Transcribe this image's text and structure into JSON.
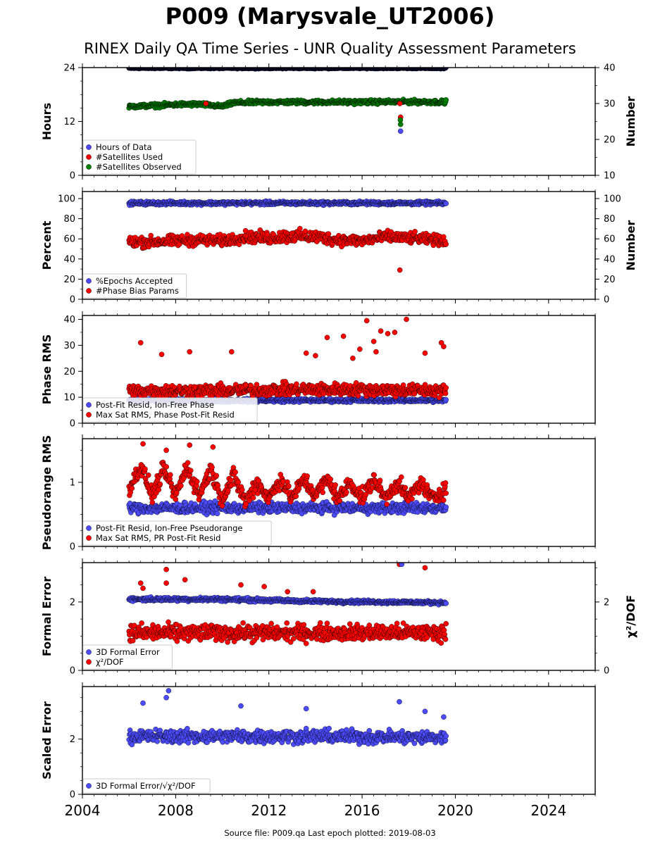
{
  "title": "P009 (Marysvale_UT2006)",
  "subtitle": "RINEX Daily QA Time Series - UNR Quality Assessment Parameters",
  "footer": "Source file: P009.qa Last epoch plotted: 2019-08-03",
  "colors": {
    "blue": "#4b4bff",
    "red": "#ff0000",
    "green": "#008000",
    "dark_blue": "#0a0a3c"
  },
  "chart_data": [
    {
      "type": "scatter",
      "id": "hours",
      "xlim": [
        2004,
        2026
      ],
      "ylabel": "Hours",
      "ylim": [
        0,
        24
      ],
      "yticks": [
        0,
        12,
        24
      ],
      "y2label": "Number",
      "y2lim": [
        10,
        40
      ],
      "y2ticks": [
        10,
        20,
        30,
        40
      ],
      "legend_position": "lower-left",
      "legend": [
        {
          "label": "Hours of Data",
          "color": "#4b4bff"
        },
        {
          "label": "#Satellites Used",
          "color": "#ff0000"
        },
        {
          "label": "#Satellites Observed",
          "color": "#008000"
        }
      ],
      "series": [
        {
          "name": "Hours of Data",
          "axis": "left",
          "color": "#0a0a3c",
          "kind": "band",
          "x": [
            2006.0,
            2019.6
          ],
          "center": [
            23.9,
            23.9
          ],
          "spread": [
            0.2,
            0.2
          ]
        },
        {
          "name": "#Satellites Observed",
          "axis": "right",
          "color": "#008000",
          "kind": "band",
          "x": [
            2006.0,
            2007.0,
            2008.0,
            2009.0,
            2010.0,
            2010.5,
            2012.0,
            2014.0,
            2016.0,
            2018.0,
            2019.6
          ],
          "center": [
            29.2,
            29.4,
            29.7,
            29.8,
            29.2,
            30.2,
            30.4,
            30.4,
            30.4,
            30.5,
            30.4
          ],
          "spread": [
            0.7,
            0.8,
            0.8,
            0.8,
            0.7,
            0.8,
            0.8,
            0.8,
            0.8,
            0.8,
            0.8
          ]
        },
        {
          "name": "#Satellites Used",
          "axis": "right",
          "color": "#ff0000",
          "kind": "points",
          "x": [
            2009.3,
            2017.65,
            2017.62
          ],
          "y": [
            30.0,
            26.2,
            30.0
          ]
        },
        {
          "name": "#Satellites Observed",
          "axis": "right",
          "color": "#008000",
          "kind": "points",
          "x": [
            2017.65,
            2017.64
          ],
          "y": [
            24.2,
            25.4
          ]
        },
        {
          "name": "Hours of Data",
          "axis": "right",
          "color": "#4b4bff",
          "kind": "points",
          "x": [
            2017.65
          ],
          "y": [
            22.3
          ]
        }
      ]
    },
    {
      "type": "scatter",
      "id": "percent",
      "xlim": [
        2004,
        2026
      ],
      "ylabel": "Percent",
      "ylim": [
        0,
        107
      ],
      "yticks": [
        0,
        20,
        40,
        60,
        80,
        100
      ],
      "y2label": "Number",
      "y2lim": [
        0,
        107
      ],
      "y2ticks": [
        0,
        20,
        40,
        60,
        80,
        100
      ],
      "legend_position": "lower-left",
      "legend": [
        {
          "label": "%Epochs Accepted",
          "color": "#4b4bff"
        },
        {
          "label": "#Phase Bias Params",
          "color": "#ff0000"
        }
      ],
      "series": [
        {
          "name": "%Epochs Accepted",
          "axis": "left",
          "color": "#4b4bff",
          "kind": "band",
          "x": [
            2006.0,
            2019.6
          ],
          "center": [
            95.5,
            95.5
          ],
          "spread": [
            2.5,
            2.5
          ]
        },
        {
          "name": "#Phase Bias Params",
          "axis": "right",
          "color": "#ff0000",
          "kind": "band",
          "x": [
            2006.0,
            2007.0,
            2008.0,
            2009.0,
            2010.0,
            2011.0,
            2012.0,
            2013.0,
            2014.0,
            2015.0,
            2016.0,
            2017.0,
            2018.0,
            2019.6
          ],
          "center": [
            57,
            57,
            58,
            59,
            58,
            62,
            61,
            63,
            62,
            59,
            58,
            62,
            61,
            58
          ],
          "spread": [
            8,
            8,
            8,
            8,
            8,
            8,
            9,
            9,
            9,
            8,
            8,
            8,
            8,
            7
          ]
        },
        {
          "name": "#Phase Bias Params",
          "axis": "right",
          "color": "#ff0000",
          "kind": "points",
          "x": [
            2017.62
          ],
          "y": [
            29
          ]
        }
      ]
    },
    {
      "type": "scatter",
      "id": "phase",
      "xlim": [
        2004,
        2026
      ],
      "ylabel": "Phase RMS",
      "ylim": [
        0,
        41.5
      ],
      "yticks": [
        0,
        10,
        20,
        30,
        40
      ],
      "legend_position": "lower-left",
      "legend": [
        {
          "label": "Post-Fit Resid, Ion-Free Phase",
          "color": "#4b4bff"
        },
        {
          "label": "Max Sat RMS, Phase Post-Fit Resid",
          "color": "#ff0000"
        }
      ],
      "series": [
        {
          "name": "Post-Fit Resid, Ion-Free Phase",
          "axis": "left",
          "color": "#4b4bff",
          "kind": "band",
          "x": [
            2006.0,
            2019.6
          ],
          "center": [
            8.8,
            8.8
          ],
          "spread": [
            1.0,
            1.0
          ]
        },
        {
          "name": "Max Sat RMS, Phase Post-Fit Resid",
          "axis": "left",
          "color": "#ff0000",
          "kind": "band",
          "x": [
            2006.0,
            2010.0,
            2013.0,
            2016.0,
            2019.6
          ],
          "center": [
            12.5,
            12.5,
            13.0,
            13.0,
            12.5
          ],
          "spread": [
            3.5,
            3.5,
            3.5,
            3.5,
            3.5
          ]
        },
        {
          "name": "Max Sat RMS, Phase Post-Fit Resid",
          "axis": "left",
          "color": "#ff0000",
          "kind": "points",
          "x": [
            2006.5,
            2007.4,
            2008.6,
            2010.4,
            2013.6,
            2014.5,
            2015.2,
            2015.9,
            2016.2,
            2016.5,
            2016.8,
            2017.1,
            2017.4,
            2017.9,
            2018.7,
            2019.4,
            2019.5,
            2015.6,
            2016.6,
            2014.0
          ],
          "y": [
            31,
            26.5,
            27.5,
            27.5,
            27,
            33,
            33.5,
            28.5,
            39.5,
            31.5,
            35.5,
            34.5,
            35,
            40,
            27,
            31,
            29.5,
            25,
            27.5,
            26
          ]
        }
      ]
    },
    {
      "type": "scatter",
      "id": "pseudorange",
      "xlim": [
        2004,
        2026
      ],
      "ylabel": "Pseudorange RMS",
      "ylim": [
        0,
        1.68
      ],
      "yticks": [
        0,
        1
      ],
      "legend_position": "lower-left",
      "legend": [
        {
          "label": "Post-Fit Resid, Ion-Free Pseudorange",
          "color": "#4b4bff"
        },
        {
          "label": "Max Sat RMS, PR Post-Fit Resid",
          "color": "#ff0000"
        }
      ],
      "series": [
        {
          "name": "Post-Fit Resid, Ion-Free Pseudorange",
          "axis": "left",
          "color": "#4b4bff",
          "kind": "band",
          "x": [
            2006.0,
            2019.6
          ],
          "center": [
            0.6,
            0.6
          ],
          "spread": [
            0.12,
            0.12
          ]
        },
        {
          "name": "Max Sat RMS, PR Post-Fit Resid",
          "axis": "left",
          "color": "#ff0000",
          "kind": "band",
          "x": [
            2006.0,
            2006.5,
            2007.0,
            2007.5,
            2008.0,
            2008.5,
            2009.0,
            2009.5,
            2010.0,
            2010.5,
            2011.0,
            2011.5,
            2012.0,
            2012.5,
            2013.0,
            2013.5,
            2014.0,
            2014.5,
            2015.0,
            2015.5,
            2016.0,
            2016.5,
            2017.0,
            2017.5,
            2018.0,
            2018.5,
            2019.0,
            2019.6
          ],
          "center": [
            0.9,
            1.25,
            0.8,
            1.2,
            0.8,
            1.25,
            0.8,
            1.2,
            0.75,
            1.1,
            0.7,
            1.0,
            0.75,
            1.05,
            0.75,
            1.05,
            0.8,
            1.05,
            0.75,
            1.0,
            0.75,
            1.05,
            0.75,
            1.0,
            0.75,
            1.0,
            0.75,
            0.9
          ],
          "spread": [
            0.18,
            0.2,
            0.18,
            0.2,
            0.18,
            0.2,
            0.18,
            0.2,
            0.18,
            0.2,
            0.18,
            0.2,
            0.18,
            0.18,
            0.18,
            0.18,
            0.18,
            0.18,
            0.18,
            0.18,
            0.18,
            0.18,
            0.18,
            0.18,
            0.18,
            0.18,
            0.18,
            0.18
          ]
        },
        {
          "name": "Max Sat RMS, PR Post-Fit Resid",
          "axis": "left",
          "color": "#ff0000",
          "kind": "points",
          "x": [
            2006.6,
            2007.6,
            2008.6,
            2009.6
          ],
          "y": [
            1.6,
            1.5,
            1.58,
            1.55
          ]
        }
      ]
    },
    {
      "type": "scatter",
      "id": "formal",
      "xlim": [
        2004,
        2026
      ],
      "ylabel": "Formal Error",
      "ylim": [
        0,
        3.15
      ],
      "yticks": [
        0,
        2
      ],
      "y2label": "χ²/DOF",
      "y2lim": [
        0,
        3.15
      ],
      "y2ticks": [
        0,
        2
      ],
      "legend_position": "lower-left",
      "legend": [
        {
          "label": "3D Formal Error",
          "color": "#4b4bff"
        },
        {
          "label": "χ²/DOF",
          "color": "#ff0000"
        }
      ],
      "series": [
        {
          "name": "3D Formal Error",
          "axis": "left",
          "color": "#4b4bff",
          "kind": "band",
          "x": [
            2006.0,
            2010.0,
            2014.0,
            2019.6
          ],
          "center": [
            2.08,
            2.08,
            2.02,
            1.98
          ],
          "spread": [
            0.08,
            0.08,
            0.07,
            0.07
          ]
        },
        {
          "name": "χ²/DOF",
          "axis": "right",
          "color": "#ff0000",
          "kind": "band",
          "x": [
            2006.0,
            2010.0,
            2014.0,
            2019.6
          ],
          "center": [
            1.1,
            1.1,
            1.1,
            1.1
          ],
          "spread": [
            0.35,
            0.35,
            0.35,
            0.35
          ]
        },
        {
          "name": "χ²/DOF",
          "axis": "right",
          "color": "#ff0000",
          "kind": "points",
          "x": [
            2006.5,
            2006.6,
            2007.6,
            2007.6,
            2008.4,
            2010.8,
            2011.8,
            2012.8,
            2017.6,
            2018.7,
            2013.9
          ],
          "y": [
            2.55,
            2.4,
            2.95,
            2.55,
            2.65,
            2.5,
            2.45,
            2.3,
            3.1,
            3.0,
            2.3
          ]
        },
        {
          "name": "3D Formal Error",
          "axis": "left",
          "color": "#4b4bff",
          "kind": "points",
          "x": [
            2017.7
          ],
          "y": [
            3.1
          ]
        }
      ]
    },
    {
      "type": "scatter",
      "id": "scaled",
      "xlim": [
        2004,
        2026
      ],
      "xticks": [
        2004,
        2008,
        2012,
        2016,
        2020,
        2024
      ],
      "ylabel": "Scaled Error",
      "ylim": [
        0,
        3.9
      ],
      "yticks": [
        0,
        2
      ],
      "legend_position": "lower-left",
      "legend": [
        {
          "label": "3D Formal Error/√χ²/DOF",
          "color": "#4b4bff"
        }
      ],
      "series": [
        {
          "name": "3D Formal Error/√χ²/DOF",
          "axis": "left",
          "color": "#4b4bff",
          "kind": "band",
          "x": [
            2006.0,
            2010.0,
            2014.0,
            2019.6
          ],
          "center": [
            2.1,
            2.1,
            2.1,
            2.05
          ],
          "spread": [
            0.35,
            0.35,
            0.35,
            0.35
          ]
        },
        {
          "name": "3D Formal Error/√χ²/DOF",
          "axis": "left",
          "color": "#4b4bff",
          "kind": "points",
          "x": [
            2007.7,
            2007.6,
            2006.6,
            2017.6,
            2018.7,
            2019.5,
            2010.8,
            2013.6
          ],
          "y": [
            3.75,
            3.5,
            3.3,
            3.35,
            3.0,
            2.8,
            3.2,
            3.1
          ]
        }
      ]
    }
  ]
}
